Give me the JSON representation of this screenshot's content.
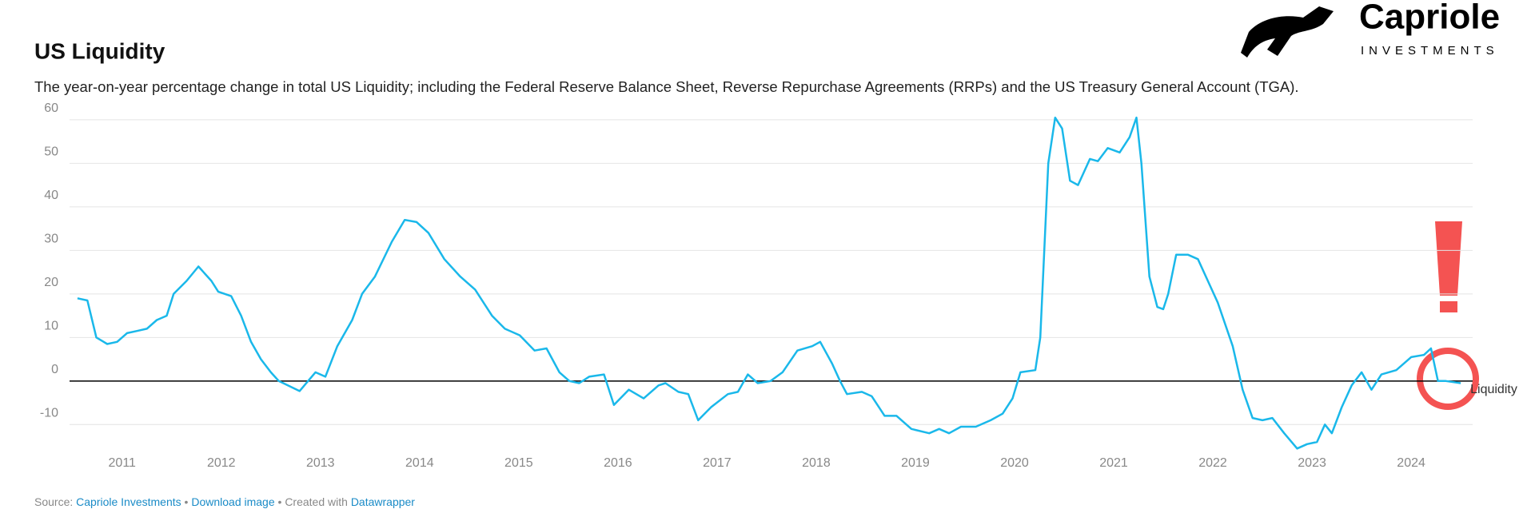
{
  "chart_data": {
    "type": "line",
    "title": "US Liquidity",
    "subtitle": "The year-on-year percentage change in total US Liquidity; including the Federal Reserve Balance Sheet, Reverse Repurchase Agreements (RRPs) and the US Treasury General Account (TGA).",
    "logo": {
      "name": "Capriole",
      "tagline": "INVESTMENTS"
    },
    "source": {
      "prefix": "Source:",
      "link": "Capriole Investments",
      "sep": "•",
      "download": "Download image",
      "created": "• Created with",
      "tool": "Datawrapper"
    },
    "xlim": [
      2010.47,
      2024.62
    ],
    "xticks": [
      2011,
      2012,
      2013,
      2014,
      2015,
      2016,
      2017,
      2018,
      2019,
      2020,
      2021,
      2022,
      2023,
      2024
    ],
    "ylim": [
      -16,
      62
    ],
    "yticks": [
      -10,
      0,
      10,
      20,
      30,
      40,
      50,
      60
    ],
    "grid": true,
    "series": [
      {
        "name": "Liquidity",
        "color": "#1ab8ea",
        "x": [
          2010.55,
          2010.65,
          2010.74,
          2010.85,
          2010.95,
          2011.05,
          2011.15,
          2011.25,
          2011.35,
          2011.45,
          2011.52,
          2011.65,
          2011.77,
          2011.9,
          2011.97,
          2012.1,
          2012.2,
          2012.3,
          2012.4,
          2012.5,
          2012.58,
          2012.79,
          2012.95,
          2013.05,
          2013.17,
          2013.32,
          2013.42,
          2013.55,
          2013.72,
          2013.85,
          2013.97,
          2014.09,
          2014.25,
          2014.41,
          2014.56,
          2014.73,
          2014.86,
          2015.01,
          2015.16,
          2015.28,
          2015.41,
          2015.51,
          2015.61,
          2015.71,
          2015.86,
          2015.96,
          2016.11,
          2016.26,
          2016.41,
          2016.48,
          2016.61,
          2016.71,
          2016.81,
          2016.94,
          2017.11,
          2017.21,
          2017.31,
          2017.41,
          2017.54,
          2017.66,
          2017.81,
          2017.96,
          2018.04,
          2018.16,
          2018.24,
          2018.31,
          2018.46,
          2018.56,
          2018.69,
          2018.81,
          2018.96,
          2019.14,
          2019.24,
          2019.34,
          2019.46,
          2019.61,
          2019.76,
          2019.88,
          2019.98,
          2020.06,
          2020.21,
          2020.26,
          2020.34,
          2020.41,
          2020.48,
          2020.56,
          2020.64,
          2020.76,
          2020.84,
          2020.94,
          2021.06,
          2021.16,
          2021.23,
          2021.28,
          2021.36,
          2021.44,
          2021.5,
          2021.55,
          2021.63,
          2021.75,
          2021.85,
          2021.95,
          2022.05,
          2022.2,
          2022.3,
          2022.4,
          2022.5,
          2022.6,
          2022.72,
          2022.85,
          2022.95,
          2023.05,
          2023.13,
          2023.2,
          2023.3,
          2023.4,
          2023.5,
          2023.6,
          2023.7,
          2023.85,
          2024.0,
          2024.13,
          2024.2,
          2024.27,
          2024.35,
          2024.5
        ],
        "values": [
          19,
          18.5,
          10,
          8.5,
          9,
          11,
          11.5,
          12,
          14,
          15,
          20,
          23,
          26.3,
          23,
          20.5,
          19.5,
          15,
          9,
          5,
          2,
          0,
          -2.3,
          2,
          1,
          8,
          14,
          20,
          24,
          32,
          37,
          36.5,
          34,
          28,
          24,
          21,
          15,
          12,
          10.5,
          7,
          7.5,
          2,
          0,
          -0.5,
          1,
          1.5,
          -5.5,
          -2,
          -4,
          -1,
          -0.5,
          -2.5,
          -3,
          -9,
          -6,
          -3,
          -2.5,
          1.5,
          -0.5,
          0,
          2,
          7,
          8,
          9,
          4,
          0,
          -3,
          -2.5,
          -3.5,
          -8,
          -8,
          -11,
          -12,
          -11,
          -12,
          -10.5,
          -10.5,
          -9,
          -7.5,
          -4,
          2,
          2.5,
          10,
          50,
          60.5,
          58,
          46,
          45,
          51,
          50.5,
          53.5,
          52.5,
          56,
          60.5,
          50,
          24,
          17,
          16.5,
          20,
          29,
          29,
          28,
          23,
          18,
          8,
          -2,
          -8.5,
          -9,
          -8.5,
          -12,
          -15.5,
          -14.5,
          -14,
          -10,
          -12,
          -6,
          -1,
          2,
          -2,
          1.5,
          2.5,
          5.5,
          6,
          7.5,
          0,
          0,
          -0.5
        ]
      }
    ]
  }
}
